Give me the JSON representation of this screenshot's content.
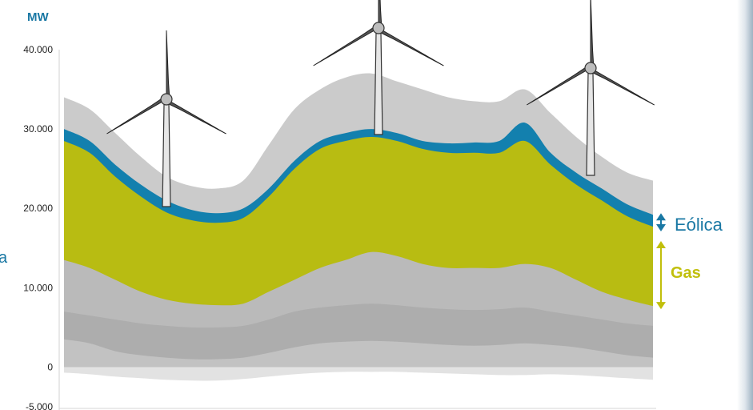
{
  "chart_data": {
    "type": "area",
    "title": "",
    "xlabel": "",
    "ylabel": "MW",
    "ylim": [
      -5000,
      40000
    ],
    "yticks": [
      {
        "value": 40000,
        "label": "40.000"
      },
      {
        "value": 30000,
        "label": "30.000"
      },
      {
        "value": 20000,
        "label": "20.000"
      },
      {
        "value": 10000,
        "label": "10.000"
      },
      {
        "value": 0,
        "label": "0"
      },
      {
        "value": -5000,
        "label": "-5.000"
      }
    ],
    "grid": false,
    "x": [
      0,
      1,
      2,
      3,
      4,
      5,
      6,
      7,
      8,
      9,
      10,
      11,
      12,
      13,
      14,
      15,
      16,
      17,
      18,
      19,
      20,
      21,
      22,
      23
    ],
    "series": [
      {
        "key": "negative",
        "color": "#e2e2e2",
        "values": [
          -700,
          -900,
          -1200,
          -1400,
          -1600,
          -1700,
          -1700,
          -1500,
          -1200,
          -900,
          -700,
          -600,
          -600,
          -600,
          -700,
          -800,
          -900,
          -1000,
          -1000,
          -900,
          -1000,
          -1200,
          -1400,
          -1600
        ]
      },
      {
        "key": "base_low",
        "color": "#c2c2c2",
        "values": [
          3500,
          3000,
          2000,
          1500,
          1200,
          1000,
          1000,
          1200,
          1800,
          2500,
          3000,
          3200,
          3300,
          3200,
          3000,
          2800,
          2700,
          2800,
          3000,
          2800,
          2500,
          2000,
          1500,
          1200
        ]
      },
      {
        "key": "base_mid",
        "color": "#adadad",
        "values": [
          7000,
          6500,
          6000,
          5500,
          5200,
          5000,
          5000,
          5200,
          6000,
          7000,
          7500,
          7800,
          8000,
          7800,
          7500,
          7300,
          7200,
          7300,
          7500,
          7000,
          6500,
          6000,
          5500,
          5200
        ]
      },
      {
        "key": "base_top",
        "color": "#bababa",
        "values": [
          13500,
          12500,
          11000,
          9500,
          8500,
          8000,
          7800,
          8000,
          9500,
          11000,
          12500,
          13500,
          14500,
          14000,
          13000,
          12500,
          12500,
          12500,
          13000,
          12500,
          11000,
          9500,
          8500,
          7700
        ]
      },
      {
        "key": "gas",
        "name": "Gas",
        "color": "#b8bc12",
        "values": [
          28500,
          27000,
          24000,
          21500,
          19500,
          18500,
          18200,
          18800,
          21500,
          25000,
          27500,
          28500,
          29000,
          28500,
          27500,
          27000,
          27000,
          27000,
          28500,
          25500,
          23000,
          21000,
          19000,
          17700
        ]
      },
      {
        "key": "eolica",
        "name": "Eólica",
        "color": "#1380ae",
        "values": [
          30000,
          28500,
          25500,
          23000,
          21000,
          19800,
          19400,
          20000,
          22500,
          26000,
          28500,
          29500,
          30000,
          29500,
          28500,
          28200,
          28300,
          28500,
          30800,
          27000,
          24500,
          22500,
          20500,
          19200
        ]
      },
      {
        "key": "top",
        "color": "#cbcbcb",
        "values": [
          34000,
          32500,
          29500,
          26500,
          24000,
          22800,
          22500,
          23500,
          28000,
          32500,
          35000,
          36500,
          37000,
          36000,
          35000,
          34000,
          33500,
          33500,
          35000,
          32000,
          29000,
          26500,
          24500,
          23500
        ]
      }
    ],
    "annotations": [
      {
        "key": "eolica",
        "text": "Eólica",
        "color": "#1a78a4"
      },
      {
        "key": "gas",
        "text": "Gas",
        "color": "#c1bf0b"
      },
      {
        "key": "cut",
        "text": "a",
        "color": "#1a78a4"
      }
    ],
    "unit_color": "#1a78a4",
    "decorations": [
      "wind-turbine",
      "wind-turbine",
      "wind-turbine"
    ]
  }
}
